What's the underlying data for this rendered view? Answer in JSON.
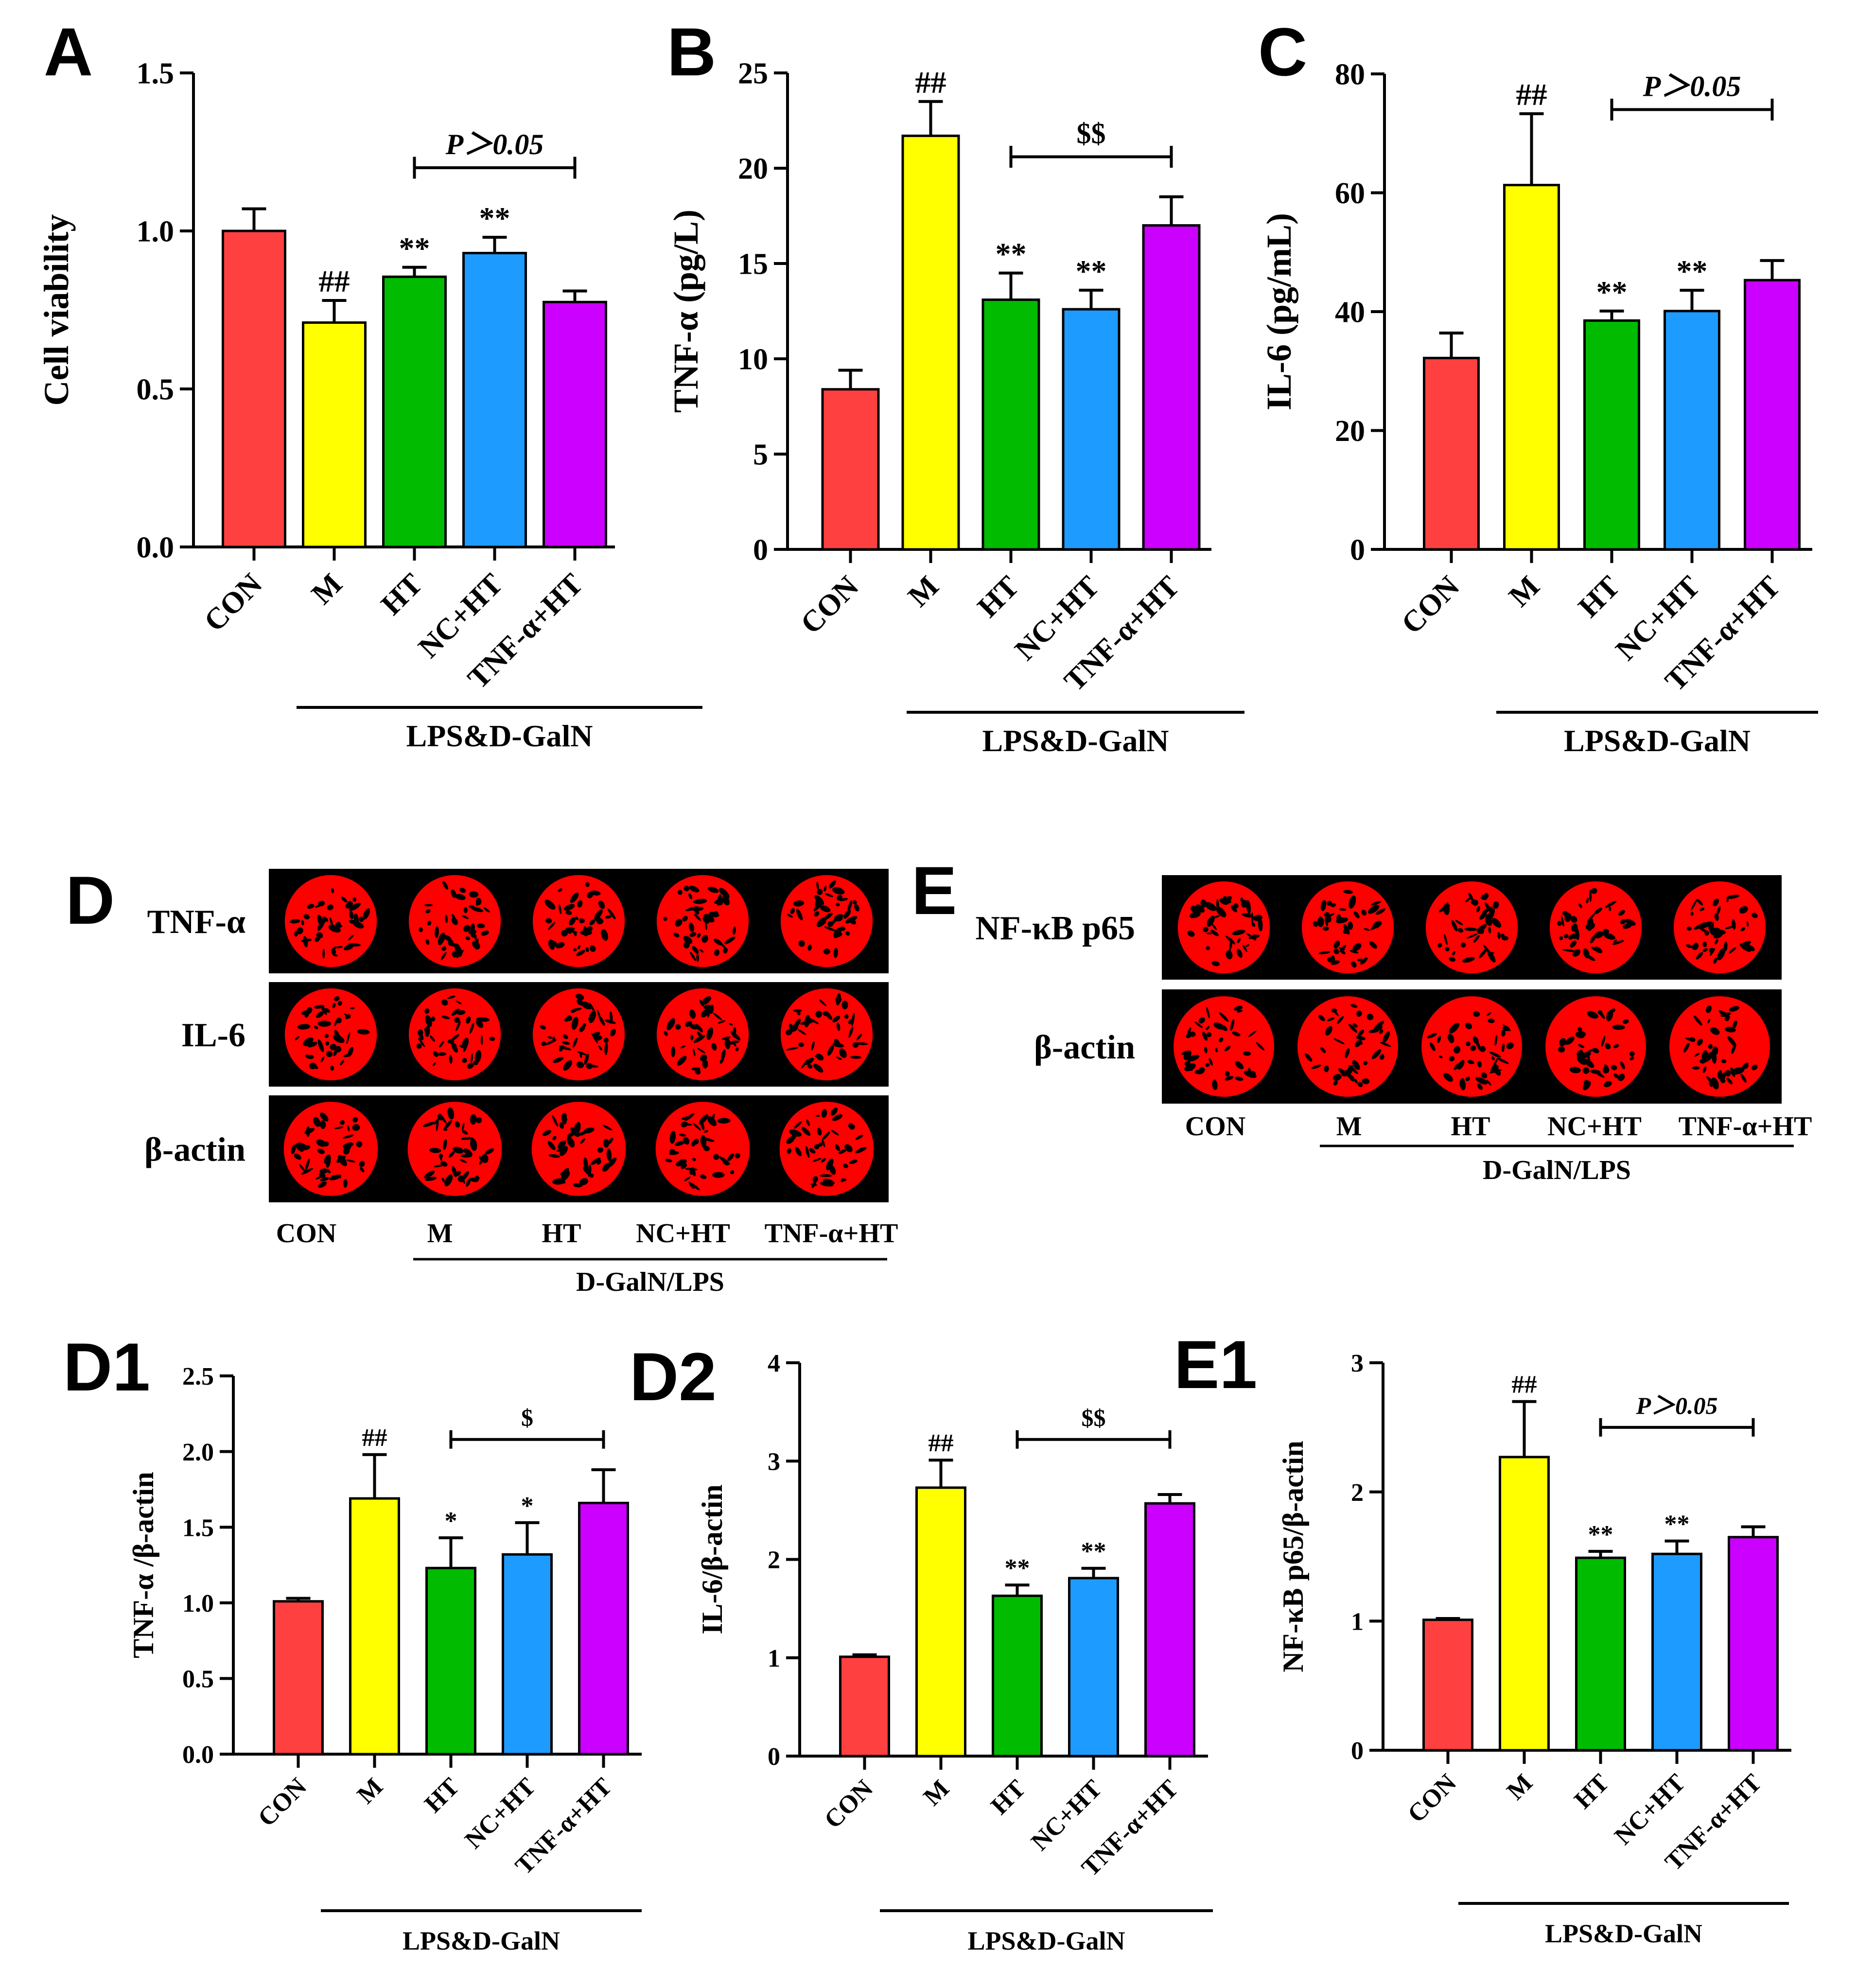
{
  "colors": {
    "CON": "#ff4040",
    "M": "#ffff00",
    "HT": "#00bb00",
    "NC+HT": "#1e9bff",
    "TNF-α+HT": "#cc00ff",
    "blot_bg": "#000000",
    "blot_spot": "#ff0000"
  },
  "chart_data": [
    {
      "id": "A",
      "panel_label": "A",
      "type": "bar",
      "ylabel": "Cell viability",
      "categories": [
        "CON",
        "M",
        "HT",
        "NC+HT",
        "TNF-α+HT"
      ],
      "values": [
        1.0,
        0.71,
        0.855,
        0.93,
        0.775
      ],
      "errors": [
        0.07,
        0.07,
        0.03,
        0.05,
        0.035
      ],
      "ylim": [
        0,
        1.5
      ],
      "yticks": [
        "0.0",
        "0.5",
        "1.0",
        "1.5"
      ],
      "marks": [
        "",
        "##",
        "**",
        "**",
        ""
      ],
      "bracket_label": "P＞0.05",
      "group_label": "LPS&D-GalN"
    },
    {
      "id": "B",
      "panel_label": "B",
      "type": "bar",
      "ylabel": "TNF-α (pg/L)",
      "categories": [
        "CON",
        "M",
        "HT",
        "NC+HT",
        "TNF-α+HT"
      ],
      "values": [
        8.4,
        21.7,
        13.1,
        12.6,
        17.0
      ],
      "errors": [
        1.0,
        1.8,
        1.4,
        1.0,
        1.5
      ],
      "ylim": [
        0,
        25
      ],
      "yticks": [
        "0",
        "5",
        "10",
        "15",
        "20",
        "25"
      ],
      "marks": [
        "",
        "##",
        "**",
        "**",
        ""
      ],
      "bracket_label": "$$",
      "group_label": "LPS&D-GalN"
    },
    {
      "id": "C",
      "panel_label": "C",
      "type": "bar",
      "ylabel": "IL-6 (pg/mL)",
      "categories": [
        "CON",
        "M",
        "HT",
        "NC+HT",
        "TNF-α+HT"
      ],
      "values": [
        32.2,
        61.3,
        38.5,
        40.1,
        45.3
      ],
      "errors": [
        4.2,
        12.0,
        1.6,
        3.5,
        3.3
      ],
      "ylim": [
        0,
        80
      ],
      "yticks": [
        "0",
        "20",
        "40",
        "60",
        "80"
      ],
      "marks": [
        "",
        "##",
        "**",
        "**",
        ""
      ],
      "bracket_label": "P＞0.05",
      "group_label": "LPS&D-GalN"
    },
    {
      "id": "D1",
      "panel_label": "D1",
      "type": "bar",
      "ylabel": "TNF-α /β-actin",
      "categories": [
        "CON",
        "M",
        "HT",
        "NC+HT",
        "TNF-α+HT"
      ],
      "values": [
        1.01,
        1.69,
        1.23,
        1.32,
        1.66
      ],
      "errors": [
        0.02,
        0.29,
        0.2,
        0.21,
        0.22
      ],
      "ylim": [
        0,
        2.5
      ],
      "yticks": [
        "0.0",
        "0.5",
        "1.0",
        "1.5",
        "2.0",
        "2.5"
      ],
      "marks": [
        "",
        "##",
        "*",
        "*",
        ""
      ],
      "bracket_label": "$",
      "group_label": "LPS&D-GalN"
    },
    {
      "id": "D2",
      "panel_label": "D2",
      "type": "bar",
      "ylabel": "IL-6/β-actin",
      "categories": [
        "CON",
        "M",
        "HT",
        "NC+HT",
        "TNF-α+HT"
      ],
      "values": [
        1.01,
        2.73,
        1.63,
        1.81,
        2.57
      ],
      "errors": [
        0.02,
        0.28,
        0.11,
        0.1,
        0.09
      ],
      "ylim": [
        0,
        4
      ],
      "yticks": [
        "0",
        "1",
        "2",
        "3",
        "4"
      ],
      "marks": [
        "",
        "##",
        "**",
        "**",
        ""
      ],
      "bracket_label": "$$",
      "group_label": "LPS&D-GalN"
    },
    {
      "id": "E1",
      "panel_label": "E1",
      "type": "bar",
      "ylabel": "NF-κB p65/β-actin",
      "categories": [
        "CON",
        "M",
        "HT",
        "NC+HT",
        "TNF-α+HT"
      ],
      "values": [
        1.01,
        2.27,
        1.49,
        1.52,
        1.65
      ],
      "errors": [
        0.01,
        0.43,
        0.05,
        0.1,
        0.08
      ],
      "ylim": [
        0,
        3
      ],
      "yticks": [
        "0",
        "1",
        "2",
        "3"
      ],
      "marks": [
        "",
        "##",
        "**",
        "**",
        ""
      ],
      "bracket_label": "P＞0.05",
      "group_label": "LPS&D-GalN"
    }
  ],
  "blots": {
    "D": {
      "panel_label": "D",
      "rows": [
        "TNF-α",
        "IL-6",
        "β-actin"
      ],
      "lanes": [
        "CON",
        "M",
        "HT",
        "NC+HT",
        "TNF-α+HT"
      ],
      "group_label": "D-GalN/LPS"
    },
    "E": {
      "panel_label": "E",
      "rows": [
        "NF-κB p65",
        "β-actin"
      ],
      "lanes": [
        "CON",
        "M",
        "HT",
        "NC+HT",
        "TNF-α+HT"
      ],
      "group_label": "D-GalN/LPS"
    }
  }
}
